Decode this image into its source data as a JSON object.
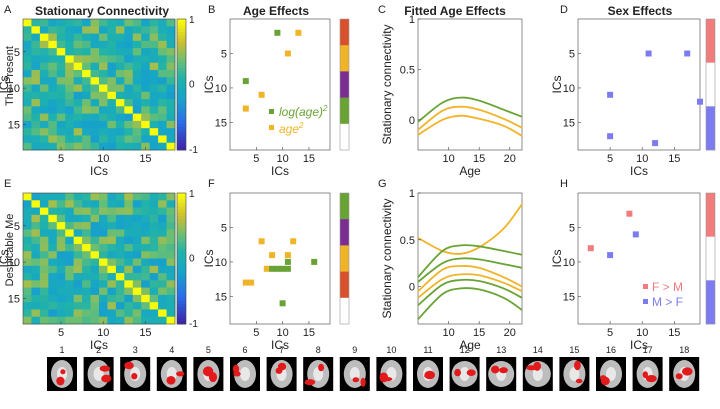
{
  "figure": {
    "row_labels": [
      "The Present",
      "Despicable Me"
    ],
    "panel_letters": [
      "A",
      "B",
      "C",
      "D",
      "E",
      "F",
      "G",
      "H"
    ],
    "titles": {
      "A": "Stationary Connectivity",
      "B": "Age Effects",
      "C": "Fitted Age Effects",
      "D": "Sex Effects"
    },
    "ics_label": "ICs",
    "age_label": "Age",
    "sc_label": "Stationary connectivity",
    "colorbar_ticks": [
      "1",
      "0",
      "-1"
    ],
    "legend_age": [
      "log(age)",
      "2",
      "age",
      "2"
    ],
    "legend_sex": [
      "F > M",
      "M > F"
    ],
    "brain_numbers": [
      "1",
      "2",
      "3",
      "4",
      "5",
      "6",
      "7",
      "8",
      "9",
      "10",
      "11",
      "12",
      "13",
      "14",
      "15",
      "16",
      "17",
      "18"
    ]
  },
  "colors": {
    "green": "#6aa335",
    "orange": "#f0b429",
    "purple": "#7b2d91",
    "red_orange": "#d9512c",
    "pink": "#f07c7c",
    "blue": "#7c7cf0"
  },
  "chart_data": [
    {
      "id": "A",
      "type": "heatmap",
      "title": "Stationary Connectivity",
      "xlabel": "ICs",
      "ylabel": "ICs",
      "row_label": "The Present",
      "x_ticks": [
        5,
        10,
        15
      ],
      "y_ticks": [
        5,
        10,
        15
      ],
      "clim": [
        -1,
        1
      ],
      "size": 18,
      "diagonal": 1,
      "seed": 7
    },
    {
      "id": "B",
      "type": "scatter",
      "title": "Age Effects",
      "xlabel": "ICs",
      "ylabel": "ICs",
      "x_ticks": [
        5,
        10,
        15
      ],
      "y_ticks": [
        5,
        10,
        15
      ],
      "xlim": [
        0,
        19
      ],
      "ylim": [
        19,
        0
      ],
      "series": [
        {
          "name": "log(age)^2",
          "color": "green",
          "points": [
            [
              9,
              2
            ],
            [
              3,
              9
            ],
            [
              11,
              5
            ],
            [
              13,
              2
            ],
            [
              6,
              11
            ],
            [
              3,
              13
            ]
          ],
          "colors": [
            "green",
            "green",
            "orange",
            "orange",
            "orange",
            "orange"
          ]
        }
      ],
      "colorbar": [
        "red_orange",
        "orange",
        "purple",
        "green",
        "white"
      ]
    },
    {
      "id": "C",
      "type": "line",
      "title": "Fitted Age Effects",
      "xlabel": "Age",
      "ylabel": "Stationary connectivity",
      "x_ticks": [
        10,
        15,
        20
      ],
      "y_ticks": [
        0,
        0.5,
        1
      ],
      "xlim": [
        5,
        22
      ],
      "ylim": [
        -0.3,
        1
      ],
      "series": [
        {
          "name": "green",
          "x": [
            5,
            9,
            12,
            15,
            19,
            22
          ],
          "y": [
            -0.02,
            0.17,
            0.22,
            0.19,
            0.1,
            0.03
          ]
        },
        {
          "name": "orange",
          "x": [
            5,
            9,
            12,
            15,
            19,
            22
          ],
          "y": [
            -0.1,
            0.09,
            0.13,
            0.1,
            0.01,
            -0.08
          ]
        },
        {
          "name": "orange",
          "x": [
            5,
            9,
            12,
            15,
            19,
            22
          ],
          "y": [
            -0.15,
            0.0,
            0.04,
            0.01,
            -0.06,
            -0.16
          ]
        }
      ]
    },
    {
      "id": "D",
      "type": "scatter",
      "title": "Sex Effects",
      "xlabel": "ICs",
      "ylabel": "ICs",
      "x_ticks": [
        5,
        10,
        15
      ],
      "y_ticks": [
        5,
        10,
        15
      ],
      "xlim": [
        0,
        19
      ],
      "ylim": [
        19,
        0
      ],
      "points": [
        [
          5,
          11
        ],
        [
          5,
          17
        ],
        [
          11,
          5
        ],
        [
          12,
          18
        ],
        [
          17,
          5
        ],
        [
          19,
          12
        ]
      ],
      "colorbar": [
        "pink",
        "white",
        "blue"
      ]
    },
    {
      "id": "E",
      "type": "heatmap",
      "xlabel": "ICs",
      "ylabel": "ICs",
      "row_label": "Despicable Me",
      "x_ticks": [
        5,
        10,
        15
      ],
      "y_ticks": [
        5,
        10,
        15
      ],
      "clim": [
        -1,
        1
      ],
      "size": 18,
      "diagonal": 1,
      "seed": 21
    },
    {
      "id": "F",
      "type": "scatter",
      "xlabel": "ICs",
      "ylabel": "ICs",
      "x_ticks": [
        5,
        10,
        15
      ],
      "y_ticks": [
        5,
        10,
        15
      ],
      "xlim": [
        0,
        19
      ],
      "ylim": [
        19,
        0
      ],
      "points": [
        [
          12,
          7
        ],
        [
          11,
          9
        ],
        [
          6,
          7
        ],
        [
          8,
          9
        ],
        [
          11,
          10
        ],
        [
          7,
          11
        ],
        [
          8,
          11
        ],
        [
          9,
          11
        ],
        [
          10,
          11
        ],
        [
          11,
          11
        ],
        [
          3,
          13
        ],
        [
          4,
          13
        ],
        [
          16,
          10
        ],
        [
          10,
          16
        ]
      ],
      "colors": [
        "orange",
        "orange",
        "orange",
        "orange",
        "green",
        "orange",
        "green",
        "green",
        "green",
        "green",
        "orange",
        "orange",
        "green",
        "green"
      ],
      "colorbar": [
        "green",
        "purple",
        "orange",
        "red_orange",
        "white"
      ]
    },
    {
      "id": "G",
      "type": "line",
      "xlabel": "Age",
      "ylabel": "Stationary connectivity",
      "x_ticks": [
        10,
        15,
        20
      ],
      "y_ticks": [
        0,
        0.5,
        1
      ],
      "xlim": [
        5,
        22
      ],
      "ylim": [
        -0.4,
        1
      ],
      "series": [
        {
          "name": "orange",
          "x": [
            5,
            9,
            12,
            15,
            19,
            22
          ],
          "y": [
            0.52,
            0.38,
            0.35,
            0.42,
            0.62,
            0.88
          ]
        },
        {
          "name": "green",
          "x": [
            5,
            9,
            12,
            15,
            19,
            22
          ],
          "y": [
            0.1,
            0.38,
            0.44,
            0.43,
            0.38,
            0.34
          ]
        },
        {
          "name": "green",
          "x": [
            5,
            9,
            12,
            15,
            19,
            22
          ],
          "y": [
            0.05,
            0.25,
            0.3,
            0.29,
            0.24,
            0.2
          ]
        },
        {
          "name": "orange",
          "x": [
            5,
            9,
            12,
            15,
            19,
            22
          ],
          "y": [
            -0.05,
            0.18,
            0.22,
            0.2,
            0.1,
            0.0
          ]
        },
        {
          "name": "orange",
          "x": [
            5,
            9,
            12,
            15,
            19,
            22
          ],
          "y": [
            -0.12,
            0.08,
            0.13,
            0.12,
            0.04,
            -0.05
          ]
        },
        {
          "name": "green",
          "x": [
            5,
            9,
            12,
            15,
            19,
            22
          ],
          "y": [
            -0.2,
            0.02,
            0.07,
            0.06,
            -0.02,
            -0.12
          ]
        },
        {
          "name": "green",
          "x": [
            5,
            9,
            12,
            15,
            19,
            22
          ],
          "y": [
            -0.35,
            -0.08,
            -0.02,
            -0.03,
            -0.12,
            -0.25
          ]
        }
      ]
    },
    {
      "id": "H",
      "type": "scatter",
      "xlabel": "ICs",
      "ylabel": "ICs",
      "x_ticks": [
        5,
        10,
        15
      ],
      "y_ticks": [
        5,
        10,
        15
      ],
      "xlim": [
        0,
        19
      ],
      "ylim": [
        19,
        0
      ],
      "points": [
        [
          2,
          8
        ],
        [
          5,
          9
        ],
        [
          8,
          3
        ],
        [
          9,
          6
        ]
      ],
      "colors": [
        "pink",
        "blue",
        "pink",
        "blue"
      ],
      "colorbar": [
        "pink",
        "white",
        "blue"
      ]
    }
  ]
}
